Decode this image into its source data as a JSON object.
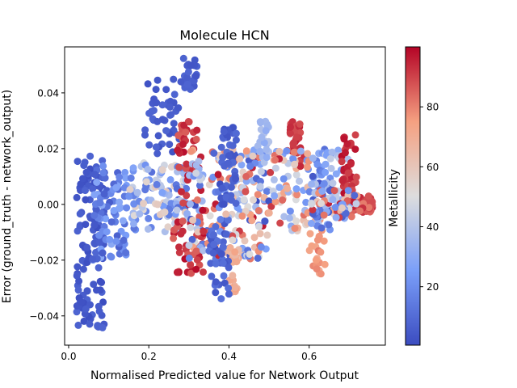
{
  "chart_data": {
    "type": "scatter",
    "title": "Molecule HCN",
    "xlabel": "Normalised Predicted value for Network Output",
    "ylabel": "Error (ground_truth - network_output)",
    "xlim": [
      -0.01,
      0.79
    ],
    "ylim": [
      -0.0505,
      0.0565
    ],
    "x_ticks": [
      0.0,
      0.2,
      0.4,
      0.6
    ],
    "x_tick_labels": [
      "0.0",
      "0.2",
      "0.4",
      "0.6"
    ],
    "y_ticks": [
      -0.04,
      -0.02,
      0.0,
      0.02,
      0.04
    ],
    "y_tick_labels": [
      "−0.04",
      "−0.02",
      "0.00",
      "0.02",
      "0.04"
    ],
    "grid": false,
    "colorbar": {
      "label": "Metallicity",
      "colormap": "coolwarm",
      "range": [
        0.5,
        100
      ],
      "ticks": [
        20,
        40,
        60,
        80
      ],
      "tick_labels": [
        "20",
        "40",
        "60",
        "80"
      ]
    },
    "point_groups": [
      {
        "x": [
          0.28,
          0.32
        ],
        "y": [
          0.04,
          0.054
        ],
        "c": [
          3,
          9
        ],
        "n": 25
      },
      {
        "x": [
          0.19,
          0.28
        ],
        "y": [
          0.018,
          0.045
        ],
        "c": [
          2,
          8
        ],
        "n": 45
      },
      {
        "x": [
          0.02,
          0.09
        ],
        "y": [
          -0.045,
          0.018
        ],
        "c": [
          1,
          8
        ],
        "n": 130
      },
      {
        "x": [
          0.06,
          0.15
        ],
        "y": [
          -0.02,
          0.015
        ],
        "c": [
          5,
          30
        ],
        "n": 80
      },
      {
        "x": [
          0.15,
          0.3
        ],
        "y": [
          -0.01,
          0.015
        ],
        "c": [
          10,
          60
        ],
        "n": 120
      },
      {
        "x": [
          0.26,
          0.34
        ],
        "y": [
          -0.025,
          -0.005
        ],
        "c": [
          85,
          99
        ],
        "n": 40
      },
      {
        "x": [
          0.27,
          0.33
        ],
        "y": [
          0.0,
          0.03
        ],
        "c": [
          85,
          99
        ],
        "n": 40
      },
      {
        "x": [
          0.3,
          0.5
        ],
        "y": [
          -0.02,
          0.02
        ],
        "c": [
          1,
          99
        ],
        "n": 220
      },
      {
        "x": [
          0.38,
          0.42
        ],
        "y": [
          0.0,
          0.028
        ],
        "c": [
          2,
          10
        ],
        "n": 45
      },
      {
        "x": [
          0.4,
          0.42
        ],
        "y": [
          -0.032,
          -0.015
        ],
        "c": [
          65,
          75
        ],
        "n": 20
      },
      {
        "x": [
          0.35,
          0.4
        ],
        "y": [
          -0.035,
          -0.01
        ],
        "c": [
          3,
          12
        ],
        "n": 35
      },
      {
        "x": [
          0.47,
          0.5
        ],
        "y": [
          0.015,
          0.03
        ],
        "c": [
          30,
          40
        ],
        "n": 25
      },
      {
        "x": [
          0.55,
          0.58
        ],
        "y": [
          0.018,
          0.03
        ],
        "c": [
          88,
          97
        ],
        "n": 25
      },
      {
        "x": [
          0.5,
          0.6
        ],
        "y": [
          -0.01,
          0.02
        ],
        "c": [
          20,
          95
        ],
        "n": 80
      },
      {
        "x": [
          0.6,
          0.64
        ],
        "y": [
          -0.025,
          -0.005
        ],
        "c": [
          70,
          82
        ],
        "n": 25
      },
      {
        "x": [
          0.6,
          0.66
        ],
        "y": [
          -0.01,
          0.02
        ],
        "c": [
          2,
          40
        ],
        "n": 50
      },
      {
        "x": [
          0.64,
          0.7
        ],
        "y": [
          -0.005,
          0.02
        ],
        "c": [
          25,
          45
        ],
        "n": 40
      },
      {
        "x": [
          0.68,
          0.72
        ],
        "y": [
          0.0,
          0.025
        ],
        "c": [
          88,
          99
        ],
        "n": 40
      },
      {
        "x": [
          0.7,
          0.76
        ],
        "y": [
          -0.003,
          0.003
        ],
        "c": [
          80,
          95
        ],
        "n": 60
      },
      {
        "x": [
          0.6,
          0.72
        ],
        "y": [
          -0.005,
          0.005
        ],
        "c": [
          1,
          99
        ],
        "n": 60
      }
    ]
  }
}
